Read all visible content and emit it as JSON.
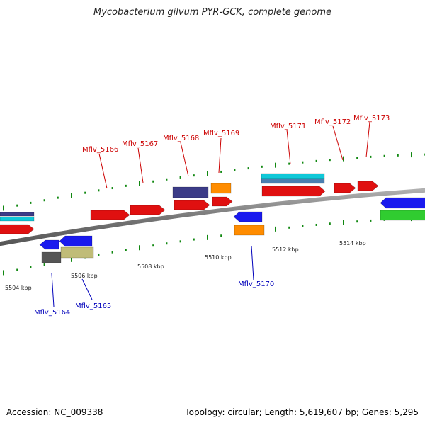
{
  "title": "Mycobacterium gilvum PYR-GCK, complete genome",
  "footer": {
    "accession": "Accession: NC_009338",
    "stats": "Topology: circular; Length: 5,619,607 bp; Genes: 5,295"
  },
  "scale_labels": [
    "5504 kbp",
    "5506 kbp",
    "5508 kbp",
    "5510 kbp",
    "5512 kbp",
    "5514 kbp"
  ],
  "gene_labels": [
    {
      "text": "Mflv_5164",
      "strand": "reverse",
      "color": "#0000bb"
    },
    {
      "text": "Mflv_5165",
      "strand": "reverse",
      "color": "#0000bb"
    },
    {
      "text": "Mflv_5166",
      "strand": "forward",
      "color": "#cc0000"
    },
    {
      "text": "Mflv_5167",
      "strand": "forward",
      "color": "#cc0000"
    },
    {
      "text": "Mflv_5168",
      "strand": "forward",
      "color": "#cc0000"
    },
    {
      "text": "Mflv_5169",
      "strand": "forward",
      "color": "#cc0000"
    },
    {
      "text": "Mflv_5170",
      "strand": "reverse",
      "color": "#0000bb"
    },
    {
      "text": "Mflv_5171",
      "strand": "forward",
      "color": "#cc0000"
    },
    {
      "text": "Mflv_5172",
      "strand": "forward",
      "color": "#cc0000"
    },
    {
      "text": "Mflv_5173",
      "strand": "forward",
      "color": "#cc0000"
    }
  ],
  "colors": {
    "cds_forward": "#e01010",
    "cds_reverse": "#1a1aee",
    "cog_orange": "#ff8c00",
    "cog_navy": "#3c3c88",
    "cog_cyan": "#10c8d8",
    "cog_steel": "#4a7fb0",
    "cog_green": "#30cc30",
    "cog_olive": "#c0bc78",
    "cog_gray": "#555555",
    "backbone": "#8a8a8a",
    "ticks": "#118811"
  }
}
